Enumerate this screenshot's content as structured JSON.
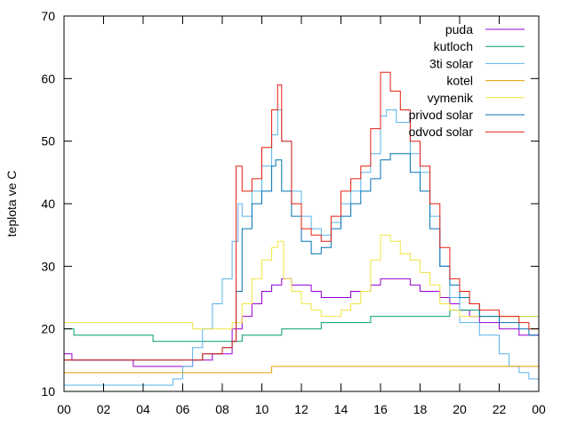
{
  "chart_data": {
    "type": "line",
    "title": "",
    "xlabel": "",
    "ylabel": "teplota ve C",
    "xlim": [
      0,
      24
    ],
    "ylim": [
      10,
      70
    ],
    "x_ticks": [
      "00",
      "02",
      "04",
      "06",
      "08",
      "10",
      "12",
      "14",
      "16",
      "18",
      "20",
      "22",
      "00"
    ],
    "y_ticks": [
      "10",
      "20",
      "30",
      "40",
      "50",
      "60",
      "70"
    ],
    "grid": false,
    "legend_position": "top-right",
    "series": [
      {
        "name": "puda",
        "color": "#9400d3",
        "points": [
          [
            0,
            16
          ],
          [
            0.4,
            15
          ],
          [
            3,
            15
          ],
          [
            3.5,
            14
          ],
          [
            6,
            14
          ],
          [
            6.5,
            15
          ],
          [
            7.5,
            16
          ],
          [
            8.5,
            20
          ],
          [
            9,
            22
          ],
          [
            9.5,
            24
          ],
          [
            10,
            26
          ],
          [
            10.5,
            27
          ],
          [
            11,
            28
          ],
          [
            11.5,
            27
          ],
          [
            12,
            27
          ],
          [
            12.5,
            26
          ],
          [
            13,
            25
          ],
          [
            14,
            25
          ],
          [
            14.5,
            26
          ],
          [
            15,
            26
          ],
          [
            15.5,
            27
          ],
          [
            16,
            28
          ],
          [
            17,
            28
          ],
          [
            17.5,
            27
          ],
          [
            18,
            26
          ],
          [
            19,
            25
          ],
          [
            19.5,
            24
          ],
          [
            20,
            23
          ],
          [
            20.5,
            22
          ],
          [
            21,
            21
          ],
          [
            22,
            20
          ],
          [
            23,
            19
          ],
          [
            23.5,
            19
          ],
          [
            24,
            18
          ]
        ]
      },
      {
        "name": "kutloch",
        "color": "#009e73",
        "points": [
          [
            0,
            20
          ],
          [
            0.5,
            19
          ],
          [
            4,
            19
          ],
          [
            4.5,
            18
          ],
          [
            8,
            18
          ],
          [
            9,
            19
          ],
          [
            10,
            19
          ],
          [
            11,
            20
          ],
          [
            12,
            20
          ],
          [
            13,
            21
          ],
          [
            15,
            21
          ],
          [
            15.5,
            22
          ],
          [
            19,
            22
          ],
          [
            19.5,
            23
          ],
          [
            20.5,
            23
          ],
          [
            21,
            22
          ],
          [
            24,
            22
          ]
        ]
      },
      {
        "name": "3ti solar",
        "color": "#56b4e9",
        "points": [
          [
            0,
            11
          ],
          [
            5,
            11
          ],
          [
            5.5,
            12
          ],
          [
            6,
            14
          ],
          [
            6.5,
            17
          ],
          [
            7,
            20
          ],
          [
            7.5,
            24
          ],
          [
            8,
            28
          ],
          [
            8.5,
            34
          ],
          [
            8.8,
            40
          ],
          [
            9,
            38
          ],
          [
            9.5,
            42
          ],
          [
            10,
            46
          ],
          [
            10.5,
            51
          ],
          [
            10.8,
            55
          ],
          [
            11,
            50
          ],
          [
            11.5,
            42
          ],
          [
            12,
            38
          ],
          [
            12.5,
            36
          ],
          [
            13,
            35
          ],
          [
            13.5,
            37
          ],
          [
            14,
            40
          ],
          [
            14.5,
            42
          ],
          [
            15,
            45
          ],
          [
            15.5,
            48
          ],
          [
            16,
            54
          ],
          [
            16.3,
            55
          ],
          [
            16.8,
            53
          ],
          [
            17.5,
            48
          ],
          [
            18,
            45
          ],
          [
            18.5,
            38
          ],
          [
            19,
            30
          ],
          [
            19.5,
            25
          ],
          [
            20,
            21
          ],
          [
            21,
            19
          ],
          [
            22,
            16
          ],
          [
            22.5,
            14
          ],
          [
            23,
            13
          ],
          [
            23.5,
            12
          ],
          [
            24,
            11
          ]
        ]
      },
      {
        "name": "kotel",
        "color": "#e69f00",
        "points": [
          [
            0,
            13
          ],
          [
            10.3,
            13
          ],
          [
            10.5,
            14
          ],
          [
            24,
            14
          ]
        ]
      },
      {
        "name": "vymenik",
        "color": "#f0e442",
        "points": [
          [
            0,
            21
          ],
          [
            6,
            21
          ],
          [
            6.5,
            20
          ],
          [
            8,
            20
          ],
          [
            8.5,
            21
          ],
          [
            9,
            24
          ],
          [
            9.5,
            28
          ],
          [
            10,
            31
          ],
          [
            10.5,
            33
          ],
          [
            10.8,
            34
          ],
          [
            11.1,
            28
          ],
          [
            11.5,
            26
          ],
          [
            12,
            24
          ],
          [
            12.5,
            23
          ],
          [
            13,
            22
          ],
          [
            13.5,
            22
          ],
          [
            14,
            23
          ],
          [
            14.5,
            24
          ],
          [
            15,
            26
          ],
          [
            15.5,
            31
          ],
          [
            16,
            35
          ],
          [
            16.5,
            34
          ],
          [
            17,
            32
          ],
          [
            17.5,
            31
          ],
          [
            18,
            29
          ],
          [
            18.5,
            27
          ],
          [
            19,
            24
          ],
          [
            19.5,
            23
          ],
          [
            20,
            22
          ],
          [
            21,
            22
          ],
          [
            22,
            22
          ],
          [
            23,
            22
          ],
          [
            24,
            22
          ]
        ]
      },
      {
        "name": "privod solar",
        "color": "#0072b2",
        "points": [
          [
            0,
            15
          ],
          [
            0.4,
            15
          ],
          [
            5,
            15
          ],
          [
            6,
            15
          ],
          [
            7,
            16
          ],
          [
            8,
            17
          ],
          [
            8.5,
            18
          ],
          [
            8.7,
            26
          ],
          [
            9,
            36
          ],
          [
            9.5,
            40
          ],
          [
            10,
            42
          ],
          [
            10.5,
            46
          ],
          [
            10.7,
            47
          ],
          [
            11,
            42
          ],
          [
            11.5,
            38
          ],
          [
            12,
            34
          ],
          [
            12.5,
            32
          ],
          [
            13,
            33
          ],
          [
            13.5,
            36
          ],
          [
            14,
            38
          ],
          [
            14.5,
            40
          ],
          [
            15,
            42
          ],
          [
            15.5,
            44
          ],
          [
            16,
            47
          ],
          [
            16.5,
            48
          ],
          [
            17,
            48
          ],
          [
            17.5,
            45
          ],
          [
            18,
            42
          ],
          [
            18.5,
            36
          ],
          [
            19,
            30
          ],
          [
            19.5,
            27
          ],
          [
            20,
            25
          ],
          [
            20.5,
            24
          ],
          [
            21,
            22
          ],
          [
            22,
            21
          ],
          [
            23,
            20
          ],
          [
            23.5,
            19
          ],
          [
            24,
            19
          ]
        ]
      },
      {
        "name": "odvod solar",
        "color": "#e51e10",
        "points": [
          [
            0,
            15
          ],
          [
            0.4,
            15
          ],
          [
            5,
            15
          ],
          [
            6,
            15
          ],
          [
            7,
            16
          ],
          [
            8,
            17
          ],
          [
            8.5,
            18
          ],
          [
            8.7,
            46
          ],
          [
            9,
            42
          ],
          [
            9.5,
            44
          ],
          [
            10,
            49
          ],
          [
            10.5,
            55
          ],
          [
            10.8,
            59
          ],
          [
            11,
            50
          ],
          [
            11.5,
            40
          ],
          [
            12,
            36
          ],
          [
            12.5,
            35
          ],
          [
            13,
            34
          ],
          [
            13.5,
            38
          ],
          [
            14,
            42
          ],
          [
            14.5,
            44
          ],
          [
            15,
            46
          ],
          [
            15.5,
            52
          ],
          [
            16,
            61
          ],
          [
            16.5,
            58
          ],
          [
            17,
            55
          ],
          [
            17.5,
            50
          ],
          [
            18,
            46
          ],
          [
            18.5,
            40
          ],
          [
            19,
            33
          ],
          [
            19.5,
            28
          ],
          [
            20,
            26
          ],
          [
            20.5,
            24
          ],
          [
            21,
            23
          ],
          [
            22,
            22
          ],
          [
            23,
            21
          ],
          [
            23.5,
            20
          ],
          [
            24,
            18
          ]
        ]
      }
    ]
  }
}
